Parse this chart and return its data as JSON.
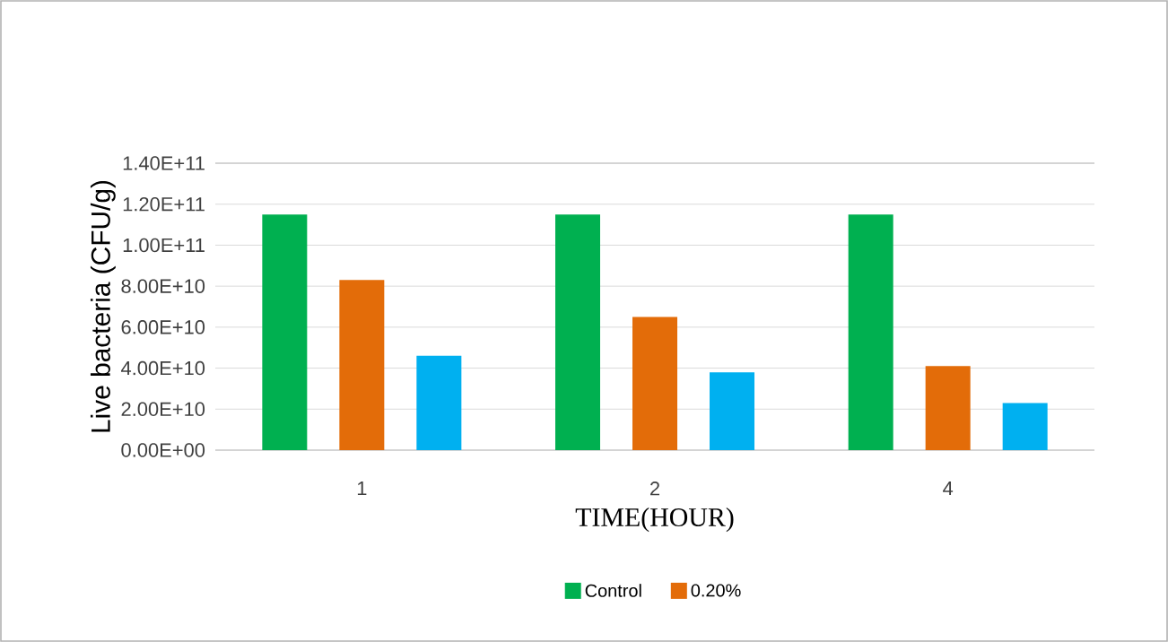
{
  "chart_data": {
    "type": "bar",
    "xlabel": "TIME(HOUR)",
    "ylabel": "Live bacteria (CFU/g)",
    "categories": [
      "1",
      "2",
      "4"
    ],
    "series": [
      {
        "name": "Control",
        "color": "#00b050",
        "values": [
          115000000000,
          115000000000,
          115000000000
        ]
      },
      {
        "name": "0.20%",
        "color": "#e36c09",
        "values": [
          83000000000,
          65000000000,
          41000000000
        ]
      },
      {
        "color": "#00b0f0",
        "values": [
          46000000000,
          38000000000,
          23000000000
        ]
      }
    ],
    "ylim": [
      0,
      140000000000
    ],
    "yticks": [
      {
        "value": 0,
        "label": "0.00E+00"
      },
      {
        "value": 20000000000,
        "label": "2.00E+10"
      },
      {
        "value": 40000000000,
        "label": "4.00E+10"
      },
      {
        "value": 60000000000,
        "label": "6.00E+10"
      },
      {
        "value": 80000000000,
        "label": "8.00E+10"
      },
      {
        "value": 100000000000,
        "label": "1.00E+11"
      },
      {
        "value": 120000000000,
        "label": "1.20E+11"
      },
      {
        "value": 140000000000,
        "label": "1.40E+11"
      }
    ],
    "grid": "y",
    "legend": "bottom"
  }
}
